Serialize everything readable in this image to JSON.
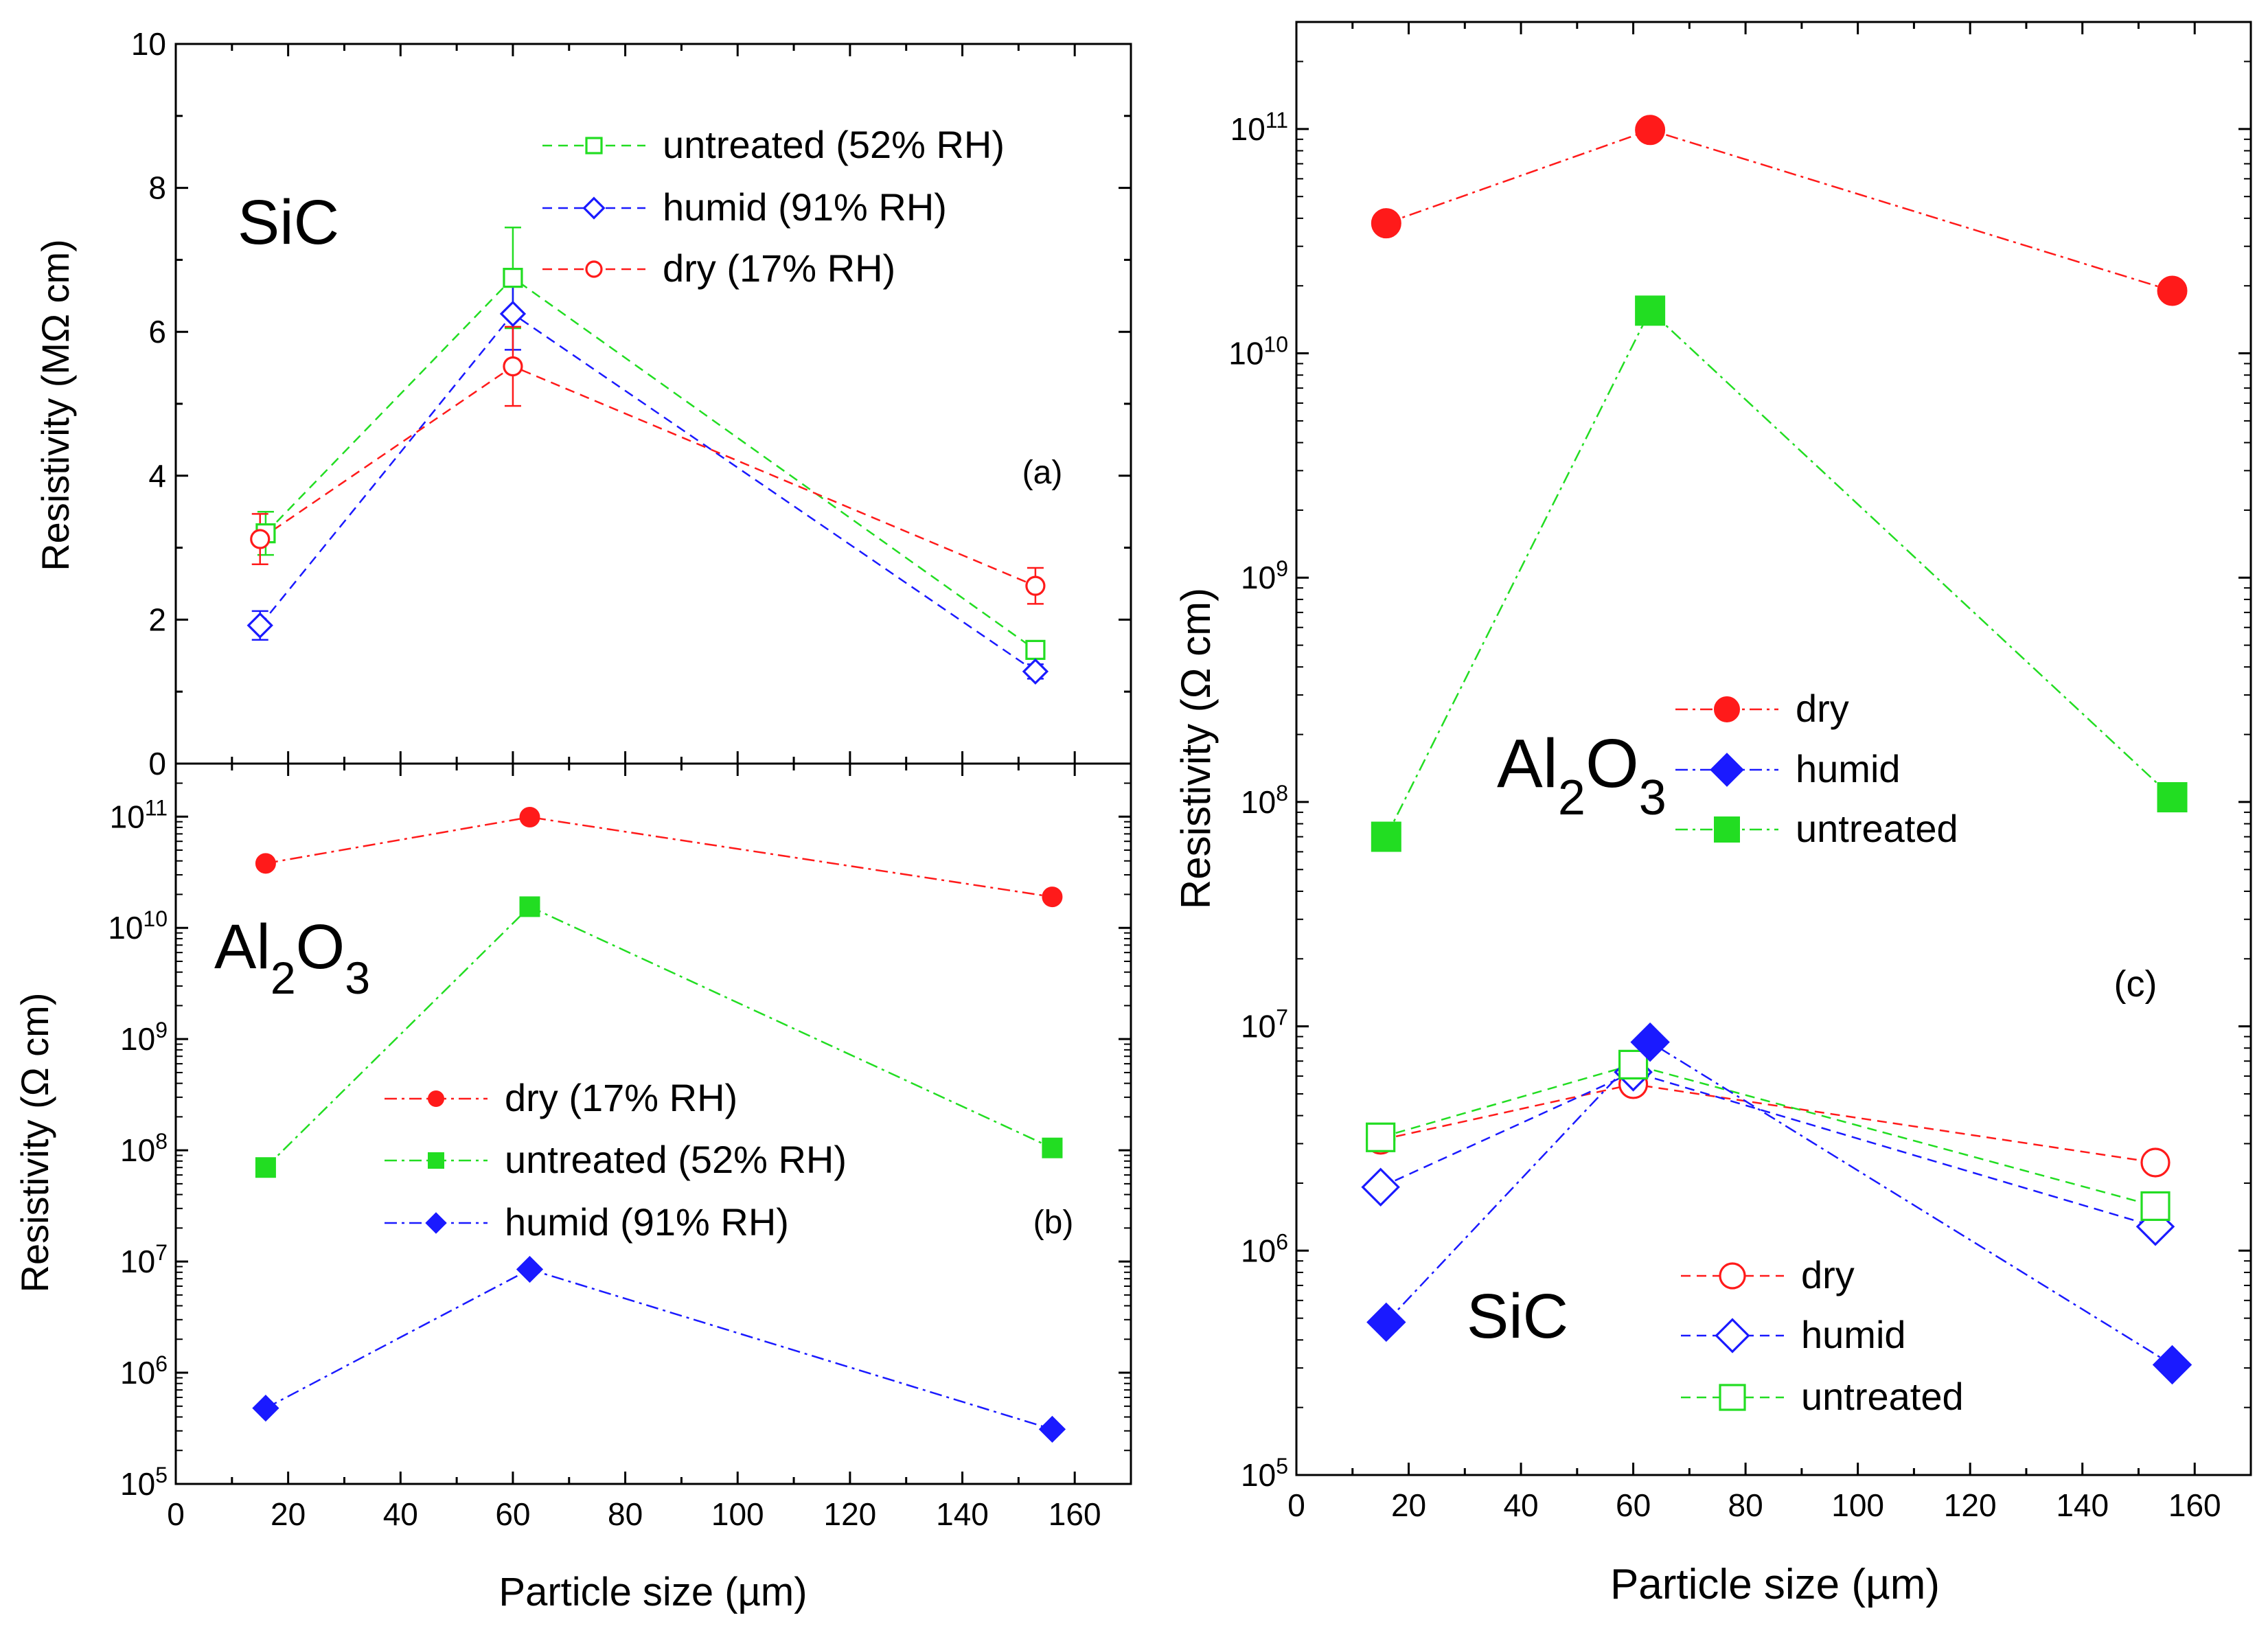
{
  "colors": {
    "dry": "#ff1a1a",
    "humid": "#1a1aff",
    "untreated": "#22dd22",
    "axis": "#000000"
  },
  "chart_data": [
    {
      "id": "a",
      "type": "line",
      "scale": "linear",
      "title": "SiC",
      "panel_label": "(a)",
      "ylabel": "Resistivity (MΩ cm)",
      "xlabel": "",
      "xlim": [
        0,
        170
      ],
      "ylim": [
        0,
        10
      ],
      "xticks": [
        0,
        20,
        40,
        60,
        80,
        100,
        120,
        140,
        160
      ],
      "yticks": [
        0,
        2,
        4,
        6,
        8,
        10
      ],
      "ytick_labels": [
        "0",
        "2",
        "4",
        "6",
        "8",
        "10"
      ],
      "legend_position": "top-right",
      "legend_order": [
        "untreated",
        "humid",
        "dry"
      ],
      "series": [
        {
          "key": "untreated",
          "name": "untreated (52% RH)",
          "marker": "square",
          "filled": false,
          "dash": "dashed",
          "x": [
            16,
            60,
            153
          ],
          "y": [
            3.2,
            6.75,
            1.58
          ],
          "err": [
            0.3,
            0.7,
            0.12
          ]
        },
        {
          "key": "humid",
          "name": "humid (91% RH)",
          "marker": "diamond",
          "filled": false,
          "dash": "dashed",
          "x": [
            15,
            60,
            153
          ],
          "y": [
            1.92,
            6.25,
            1.28
          ],
          "err": [
            0.2,
            0.5,
            0.1
          ]
        },
        {
          "key": "dry",
          "name": "dry (17% RH)",
          "marker": "circle",
          "filled": false,
          "dash": "dashed",
          "x": [
            15,
            60,
            153
          ],
          "y": [
            3.12,
            5.52,
            2.47
          ],
          "err": [
            0.35,
            0.55,
            0.25
          ]
        }
      ]
    },
    {
      "id": "b",
      "type": "line",
      "scale": "log",
      "title": "Al2O3",
      "panel_label": "(b)",
      "ylabel": "Resistivity (Ω cm)",
      "xlabel": "Particle size (µm)",
      "xlim": [
        0,
        170
      ],
      "ylim": [
        100000,
        300000000000
      ],
      "xticks": [
        0,
        20,
        40,
        60,
        80,
        100,
        120,
        140,
        160
      ],
      "ytick_exponents": [
        5,
        6,
        7,
        8,
        9,
        10,
        11
      ],
      "legend_position": "center",
      "legend_order": [
        "dry",
        "untreated",
        "humid"
      ],
      "series": [
        {
          "key": "dry",
          "name": "dry (17% RH)",
          "marker": "circle",
          "filled": true,
          "dash": "dashdot",
          "x": [
            16,
            63,
            156
          ],
          "y": [
            38000000000,
            99000000000,
            19000000000
          ]
        },
        {
          "key": "untreated",
          "name": "untreated (52% RH)",
          "marker": "square",
          "filled": true,
          "dash": "dashdot",
          "x": [
            16,
            63,
            156
          ],
          "y": [
            70000000,
            15500000000,
            105000000
          ]
        },
        {
          "key": "humid",
          "name": "humid (91% RH)",
          "marker": "diamond",
          "filled": true,
          "dash": "dashdot",
          "x": [
            16,
            63,
            156
          ],
          "y": [
            480000,
            8500000,
            310000
          ]
        }
      ]
    },
    {
      "id": "c",
      "type": "line",
      "scale": "log",
      "panel_label": "(c)",
      "ylabel": "Resistivity (Ω cm)",
      "xlabel": "Particle size (µm)",
      "xlim": [
        0,
        170
      ],
      "ylim": [
        100000,
        300000000000
      ],
      "xticks": [
        0,
        20,
        40,
        60,
        80,
        100,
        120,
        140,
        160
      ],
      "ytick_exponents": [
        5,
        6,
        7,
        8,
        9,
        10,
        11
      ],
      "groups": [
        {
          "title": "Al2O3",
          "legend_position": "center-right",
          "legend_order": [
            "dry",
            "humid",
            "untreated"
          ],
          "series": [
            {
              "key": "dry",
              "name": "dry",
              "marker": "circle",
              "filled": true,
              "dash": "dashdot",
              "x": [
                16,
                63,
                156
              ],
              "y": [
                38000000000,
                99000000000,
                19000000000
              ]
            },
            {
              "key": "humid",
              "name": "humid",
              "marker": "diamond",
              "filled": true,
              "dash": "dashdot",
              "legend_only": true,
              "x": [],
              "y": []
            },
            {
              "key": "untreated",
              "name": "untreated",
              "marker": "square",
              "filled": true,
              "dash": "dashdot",
              "x": [
                16,
                63,
                156
              ],
              "y": [
                70000000,
                15500000000,
                105000000
              ]
            }
          ]
        },
        {
          "title": "SiC",
          "legend_position": "bottom-right",
          "legend_order": [
            "dry",
            "humid",
            "untreated"
          ],
          "series": [
            {
              "key": "dry",
              "name": "dry",
              "marker": "circle",
              "filled": false,
              "dash": "dashed",
              "x": [
                15,
                60,
                153
              ],
              "y": [
                3120000,
                5520000,
                2470000
              ]
            },
            {
              "key": "humid",
              "name": "humid",
              "marker": "diamond",
              "filled": false,
              "dash": "dashed",
              "x": [
                15,
                60,
                153
              ],
              "y": [
                1920000,
                6250000,
                1280000
              ]
            },
            {
              "key": "untreated",
              "name": "untreated",
              "marker": "square",
              "filled": false,
              "dash": "dashed",
              "x": [
                15,
                60,
                153
              ],
              "y": [
                3200000,
                6750000,
                1580000
              ]
            }
          ]
        },
        {
          "title": "",
          "series": [
            {
              "key": "humid",
              "name": "humid (Al2O3)",
              "marker": "diamond",
              "filled": true,
              "dash": "dashdot",
              "legend_only": false,
              "x": [
                16,
                63,
                156
              ],
              "y": [
                480000,
                8500000,
                310000
              ]
            }
          ]
        }
      ]
    }
  ]
}
